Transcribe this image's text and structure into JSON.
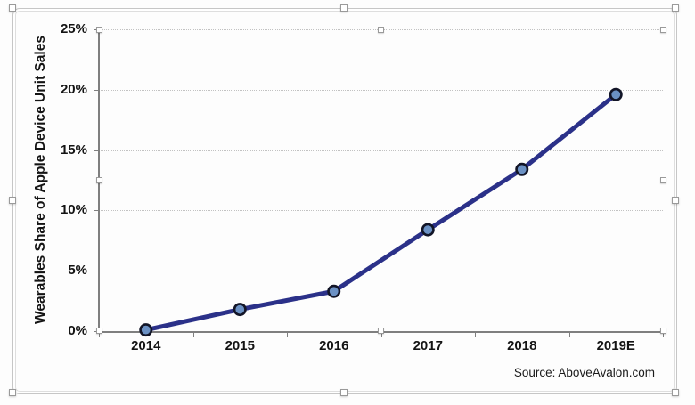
{
  "chart_data": {
    "type": "line",
    "title": "",
    "ylabel": "Wearables Share of Apple Device Unit Sales",
    "xlabel": "",
    "categories": [
      "2014",
      "2015",
      "2016",
      "2017",
      "2018",
      "2019E"
    ],
    "series": [
      {
        "name": "Wearables Share of Apple Device Unit Sales",
        "values": [
          0.1,
          1.8,
          3.3,
          8.4,
          13.4,
          19.6
        ]
      }
    ],
    "ylim": [
      0,
      25
    ],
    "ytick_step": 5,
    "ytick_labels": [
      "0%",
      "5%",
      "10%",
      "15%",
      "20%",
      "25%"
    ],
    "grid": true,
    "gridline_style": "dotted",
    "legend_position": "none",
    "source_note": "Source: AboveAvalon.com",
    "colors": {
      "line": "#2b3189",
      "marker_fill": "#6b91c4",
      "marker_border": "#121527",
      "axis": "#7f7f7f",
      "gridline": "#c2c2c2",
      "text": "#141414"
    }
  },
  "editor": {
    "chart_selected": true,
    "plot_area_selected": true
  }
}
